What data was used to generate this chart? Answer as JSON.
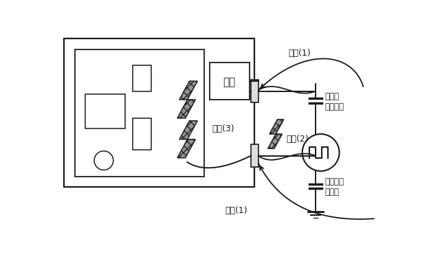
{
  "bg_color": "#ffffff",
  "line_color": "#1a1a1a",
  "label_power": "电源",
  "label_cause1_top": "原因(1)",
  "label_cause2": "原因(2)",
  "label_cause3": "原因(3)",
  "label_cause1_bot": "原因(1)",
  "label_power_cap": "电源线\n注入电容",
  "label_signal_cap": "信号线注\n入电容"
}
